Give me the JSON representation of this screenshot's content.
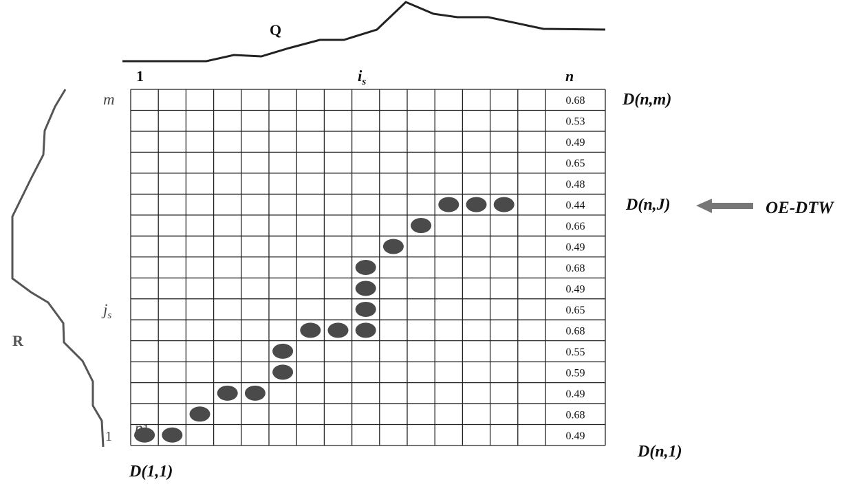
{
  "labels": {
    "q": "Q",
    "r": "R",
    "top_first": "1",
    "top_is_main": "i",
    "top_is_sub": "s",
    "top_last": "n",
    "left_m": "m",
    "left_js_main": "j",
    "left_js_sub": "s",
    "left_one": "1",
    "p1_main": "p",
    "p1_sub": "1",
    "d_nm": "D(n,m)",
    "d_nj": "D(n,J)",
    "oe_dtw": "OE-DTW",
    "d_n1": "D(n,1)",
    "d_11": "D(1,1)"
  },
  "grid": {
    "columns": 15,
    "rows": 17
  },
  "last_column_values": [
    "0.68",
    "0.53",
    "0.49",
    "0.65",
    "0.48",
    "0.44",
    "0.66",
    "0.49",
    "0.68",
    "0.49",
    "0.65",
    "0.68",
    "0.55",
    "0.59",
    "0.49",
    "0.68",
    "0.49"
  ],
  "path_cells": [
    [
      1,
      1
    ],
    [
      2,
      1
    ],
    [
      3,
      2
    ],
    [
      4,
      3
    ],
    [
      5,
      3
    ],
    [
      6,
      4
    ],
    [
      6,
      5
    ],
    [
      7,
      6
    ],
    [
      8,
      6
    ],
    [
      9,
      6
    ],
    [
      9,
      7
    ],
    [
      9,
      8
    ],
    [
      9,
      9
    ],
    [
      10,
      10
    ],
    [
      11,
      11
    ],
    [
      12,
      12
    ],
    [
      13,
      12
    ],
    [
      14,
      12
    ]
  ],
  "colors": {
    "grid": "#222222",
    "dot": "#4a4a4a",
    "curve_q": "#222222",
    "curve_r": "#555555",
    "arrow": "#777777"
  }
}
